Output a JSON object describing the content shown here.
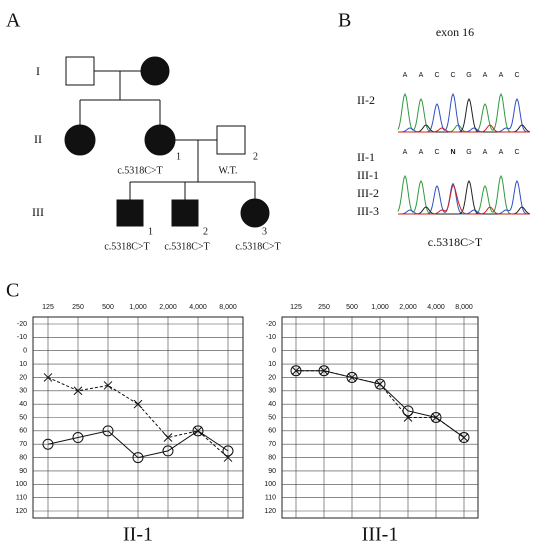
{
  "pedigree": {
    "label": "A",
    "generations": [
      "I",
      "II",
      "III"
    ],
    "individuals": [
      {
        "number": "1",
        "genotype": "c.5318C>T"
      },
      {
        "number": "2",
        "genotype": "W.T."
      },
      {
        "number": "1",
        "genotype": "c.5318C>T"
      },
      {
        "number": "2",
        "genotype": "c.5318C>T"
      },
      {
        "number": "3",
        "genotype": "c.5318C>T"
      }
    ]
  },
  "sequencing": {
    "label": "B",
    "title": "exon 16",
    "reference": {
      "samples": [
        "II-2"
      ],
      "bases": [
        "A",
        "A",
        "C",
        "C",
        "G",
        "A",
        "A",
        "C"
      ]
    },
    "mutant": {
      "samples": [
        "II-1",
        "III-1",
        "III-2",
        "III-3"
      ],
      "bases": [
        "A",
        "A",
        "C",
        "N",
        "G",
        "A",
        "A",
        "C"
      ]
    },
    "caption": "c.5318C>T"
  },
  "audiogram_label": "C",
  "chart_data": [
    {
      "type": "line",
      "title": "II-1",
      "categories": [
        "125",
        "250",
        "500",
        "1,000",
        "2,000",
        "4,000",
        "8,000"
      ],
      "series": [
        {
          "color": "#111111",
          "marker": "o",
          "linestyle": "solid",
          "values": [
            70,
            65,
            60,
            80,
            75,
            60,
            75
          ]
        },
        {
          "color": "#111111",
          "marker": "x",
          "linestyle": "dashed",
          "values": [
            20,
            30,
            26,
            40,
            65,
            60,
            80
          ]
        }
      ],
      "ylim": [
        -20,
        120
      ],
      "yticks": [
        -20,
        -10,
        0,
        10,
        20,
        30,
        40,
        50,
        60,
        70,
        80,
        90,
        100,
        110,
        120
      ],
      "y_inverted": true,
      "grid": true
    },
    {
      "type": "line",
      "title": "III-1",
      "categories": [
        "125",
        "250",
        "500",
        "1,000",
        "2,000",
        "4,000",
        "8,000"
      ],
      "series": [
        {
          "color": "#111111",
          "marker": "o",
          "linestyle": "solid",
          "values": [
            15,
            15,
            20,
            25,
            45,
            50,
            65
          ]
        },
        {
          "color": "#111111",
          "marker": "x",
          "linestyle": "dashed",
          "values": [
            15,
            15,
            20,
            25,
            50,
            50,
            65
          ]
        }
      ],
      "ylim": [
        -20,
        120
      ],
      "yticks": [
        -20,
        -10,
        0,
        10,
        20,
        30,
        40,
        50,
        60,
        70,
        80,
        90,
        100,
        110,
        120
      ],
      "y_inverted": true,
      "grid": true
    }
  ]
}
